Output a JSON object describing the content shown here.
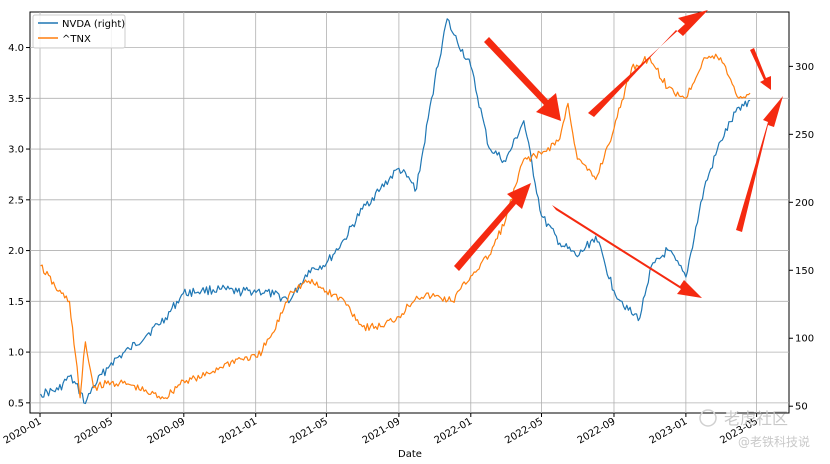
{
  "chart_data": {
    "type": "line",
    "xlabel": "Date",
    "x_ticks": [
      "2020-01",
      "2020-05",
      "2020-09",
      "2021-01",
      "2021-05",
      "2021-09",
      "2022-01",
      "2022-05",
      "2022-09",
      "2023-01",
      "2023-05"
    ],
    "ylim_left": [
      0.4,
      4.35
    ],
    "yticks_left": [
      "0.5",
      "1.0",
      "1.5",
      "2.0",
      "2.5",
      "3.0",
      "3.5",
      "4.0"
    ],
    "ylim_right": [
      45,
      340
    ],
    "yticks_right": [
      "50",
      "100",
      "150",
      "200",
      "250",
      "300"
    ],
    "grid": true,
    "legend": {
      "placement": "top-left"
    },
    "series": [
      {
        "name": "NVDA (right)",
        "axis": "right",
        "color": "#1f77b4",
        "x": [
          "2020-01-02",
          "2020-02-01",
          "2020-02-20",
          "2020-03-10",
          "2020-03-18",
          "2020-04-01",
          "2020-05-01",
          "2020-06-01",
          "2020-07-01",
          "2020-08-01",
          "2020-08-31",
          "2020-10-01",
          "2020-11-01",
          "2020-12-01",
          "2021-01-04",
          "2021-02-01",
          "2021-03-01",
          "2021-04-01",
          "2021-05-01",
          "2021-06-01",
          "2021-07-01",
          "2021-08-01",
          "2021-09-01",
          "2021-10-01",
          "2021-11-01",
          "2021-11-22",
          "2021-12-01",
          "2022-01-01",
          "2022-02-01",
          "2022-03-01",
          "2022-04-01",
          "2022-05-01",
          "2022-06-01",
          "2022-07-01",
          "2022-08-01",
          "2022-09-01",
          "2022-10-01",
          "2022-10-15",
          "2022-11-01",
          "2022-12-01",
          "2023-01-01",
          "2023-02-01",
          "2023-03-01",
          "2023-04-01",
          "2023-04-20"
        ],
        "values": [
          59,
          62,
          72,
          60,
          52,
          65,
          82,
          92,
          103,
          115,
          133,
          135,
          136,
          134,
          135,
          132,
          128,
          150,
          155,
          173,
          195,
          210,
          225,
          210,
          290,
          335,
          325,
          300,
          240,
          230,
          260,
          190,
          170,
          160,
          175,
          135,
          118,
          115,
          150,
          165,
          145,
          210,
          245,
          270,
          275
        ]
      },
      {
        "name": "^TNX",
        "axis": "left",
        "color": "#ff7f0e",
        "x": [
          "2020-01-02",
          "2020-02-01",
          "2020-02-20",
          "2020-03-09",
          "2020-03-18",
          "2020-04-01",
          "2020-05-01",
          "2020-06-01",
          "2020-07-01",
          "2020-08-01",
          "2020-08-31",
          "2020-10-01",
          "2020-11-01",
          "2020-12-01",
          "2021-01-04",
          "2021-02-01",
          "2021-03-01",
          "2021-04-01",
          "2021-05-01",
          "2021-06-01",
          "2021-07-01",
          "2021-08-01",
          "2021-09-01",
          "2021-10-01",
          "2021-11-01",
          "2021-12-01",
          "2022-01-01",
          "2022-02-01",
          "2022-03-01",
          "2022-04-01",
          "2022-05-01",
          "2022-06-01",
          "2022-06-15",
          "2022-07-01",
          "2022-08-01",
          "2022-09-01",
          "2022-10-01",
          "2022-11-01",
          "2022-12-01",
          "2023-01-01",
          "2023-02-01",
          "2023-03-01",
          "2023-04-01",
          "2023-04-20"
        ],
        "values": [
          1.85,
          1.6,
          1.5,
          0.55,
          1.1,
          0.65,
          0.7,
          0.68,
          0.6,
          0.55,
          0.72,
          0.75,
          0.85,
          0.93,
          0.95,
          1.2,
          1.6,
          1.7,
          1.6,
          1.5,
          1.25,
          1.25,
          1.35,
          1.55,
          1.55,
          1.5,
          1.75,
          1.95,
          2.3,
          2.9,
          2.95,
          3.1,
          3.45,
          2.9,
          2.7,
          3.2,
          3.8,
          3.9,
          3.6,
          3.5,
          3.9,
          3.9,
          3.5,
          3.55
        ]
      }
    ]
  },
  "watermark": {
    "line1": "老虎社区",
    "line2": "@老铁科技说"
  }
}
